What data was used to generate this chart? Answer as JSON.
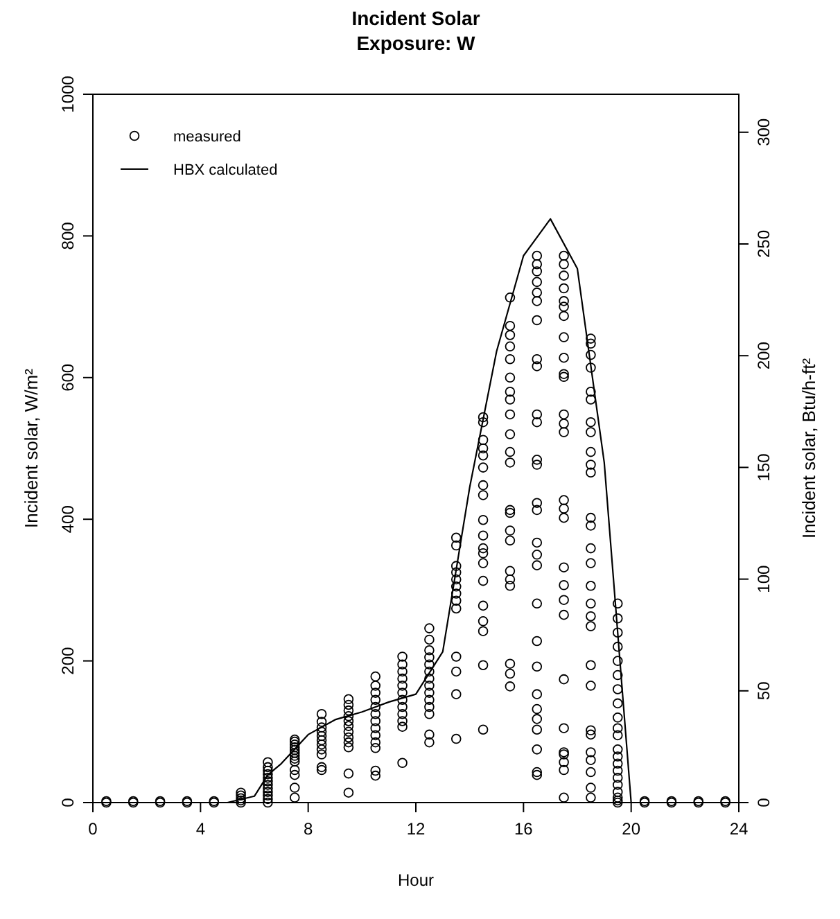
{
  "chart_data": {
    "type": "scatter",
    "title": "Incident Solar\nExposure: W",
    "xlabel": "Hour",
    "ylabel": "Incident solar, W/m²",
    "y2label": "Incident solar, Btu/h-ft²",
    "xlim": [
      0,
      24
    ],
    "xticks": [
      0,
      4,
      8,
      12,
      16,
      20,
      24
    ],
    "ylim": [
      0,
      1000
    ],
    "yticks": [
      0,
      200,
      400,
      600,
      800,
      1000
    ],
    "y2lim": [
      0,
      317
    ],
    "y2ticks": [
      0,
      50,
      100,
      150,
      200,
      250,
      300
    ],
    "legend": "top left",
    "grid": false,
    "series": [
      {
        "name": "measured",
        "marker": "circle",
        "color": "#000000",
        "x": [
          0.5,
          0.5,
          1.5,
          1.5,
          2.5,
          2.5,
          3.5,
          3.5,
          4.5,
          4.5,
          5.5,
          5.5,
          5.5,
          5.5,
          5.5,
          6.5,
          6.5,
          6.5,
          6.5,
          6.5,
          6.5,
          6.5,
          6.5,
          6.5,
          6.5,
          6.5,
          6.5,
          7.5,
          7.5,
          7.5,
          7.5,
          7.5,
          7.5,
          7.5,
          7.5,
          7.5,
          7.5,
          7.5,
          7.5,
          7.5,
          8.5,
          8.5,
          8.5,
          8.5,
          8.5,
          8.5,
          8.5,
          8.5,
          8.5,
          8.5,
          8.5,
          9.5,
          9.5,
          9.5,
          9.5,
          9.5,
          9.5,
          9.5,
          9.5,
          9.5,
          9.5,
          9.5,
          9.5,
          10.5,
          10.5,
          10.5,
          10.5,
          10.5,
          10.5,
          10.5,
          10.5,
          10.5,
          10.5,
          10.5,
          10.5,
          10.5,
          11.5,
          11.5,
          11.5,
          11.5,
          11.5,
          11.5,
          11.5,
          11.5,
          11.5,
          11.5,
          11.5,
          11.5,
          12.5,
          12.5,
          12.5,
          12.5,
          12.5,
          12.5,
          12.5,
          12.5,
          12.5,
          12.5,
          12.5,
          12.5,
          12.5,
          12.5,
          13.5,
          13.5,
          13.5,
          13.5,
          13.5,
          13.5,
          13.5,
          13.5,
          13.5,
          13.5,
          13.5,
          13.5,
          13.5,
          14.5,
          14.5,
          14.5,
          14.5,
          14.5,
          14.5,
          14.5,
          14.5,
          14.5,
          14.5,
          14.5,
          14.5,
          14.5,
          14.5,
          14.5,
          14.5,
          14.5,
          14.5,
          14.5,
          15.5,
          15.5,
          15.5,
          15.5,
          15.5,
          15.5,
          15.5,
          15.5,
          15.5,
          15.5,
          15.5,
          15.5,
          15.5,
          15.5,
          15.5,
          15.5,
          15.5,
          15.5,
          15.5,
          15.5,
          15.5,
          15.5,
          16.5,
          16.5,
          16.5,
          16.5,
          16.5,
          16.5,
          16.5,
          16.5,
          16.5,
          16.5,
          16.5,
          16.5,
          16.5,
          16.5,
          16.5,
          16.5,
          16.5,
          16.5,
          16.5,
          16.5,
          16.5,
          16.5,
          16.5,
          16.5,
          16.5,
          16.5,
          16.5,
          16.5,
          17.5,
          17.5,
          17.5,
          17.5,
          17.5,
          17.5,
          17.5,
          17.5,
          17.5,
          17.5,
          17.5,
          17.5,
          17.5,
          17.5,
          17.5,
          17.5,
          17.5,
          17.5,
          17.5,
          17.5,
          17.5,
          17.5,
          17.5,
          17.5,
          17.5,
          17.5,
          17.5,
          17.5,
          18.5,
          18.5,
          18.5,
          18.5,
          18.5,
          18.5,
          18.5,
          18.5,
          18.5,
          18.5,
          18.5,
          18.5,
          18.5,
          18.5,
          18.5,
          18.5,
          18.5,
          18.5,
          18.5,
          18.5,
          18.5,
          18.5,
          18.5,
          18.5,
          18.5,
          18.5,
          18.5,
          18.5,
          19.5,
          19.5,
          19.5,
          19.5,
          19.5,
          19.5,
          19.5,
          19.5,
          19.5,
          19.5,
          19.5,
          19.5,
          19.5,
          19.5,
          19.5,
          19.5,
          19.5,
          19.5,
          19.5,
          19.5,
          19.5,
          20.5,
          20.5,
          21.5,
          21.5,
          22.5,
          22.5,
          23.5,
          23.5
        ],
        "values": [
          0,
          2,
          0,
          2,
          0,
          2,
          0,
          2,
          0,
          2,
          0,
          3,
          6,
          10,
          14,
          0,
          5,
          10,
          15,
          20,
          25,
          30,
          35,
          40,
          45,
          50,
          57,
          7,
          21,
          39,
          46,
          58,
          62,
          66,
          70,
          74,
          78,
          82,
          86,
          89,
          46,
          50,
          68,
          75,
          82,
          88,
          94,
          100,
          106,
          114,
          125,
          14,
          41,
          78,
          85,
          92,
          100,
          108,
          115,
          122,
          130,
          138,
          146,
          38,
          45,
          77,
          85,
          95,
          105,
          115,
          125,
          135,
          145,
          155,
          165,
          178,
          56,
          107,
          115,
          125,
          135,
          145,
          155,
          165,
          175,
          185,
          195,
          206,
          85,
          96,
          125,
          135,
          145,
          155,
          165,
          175,
          185,
          195,
          205,
          215,
          230,
          246,
          90,
          153,
          185,
          206,
          274,
          285,
          295,
          305,
          315,
          325,
          334,
          363,
          374,
          103,
          194,
          242,
          256,
          278,
          313,
          338,
          352,
          359,
          377,
          399,
          434,
          448,
          473,
          490,
          500,
          512,
          537,
          544,
          164,
          182,
          196,
          306,
          315,
          327,
          370,
          384,
          409,
          413,
          480,
          495,
          520,
          548,
          569,
          580,
          600,
          626,
          644,
          660,
          673,
          713,
          39,
          43,
          75,
          103,
          118,
          132,
          153,
          192,
          228,
          281,
          335,
          350,
          367,
          413,
          423,
          477,
          484,
          537,
          548,
          616,
          626,
          681,
          708,
          720,
          735,
          750,
          760,
          772,
          7,
          46,
          57,
          68,
          71,
          105,
          174,
          265,
          286,
          307,
          332,
          402,
          415,
          427,
          523,
          535,
          548,
          601,
          605,
          628,
          657,
          687,
          700,
          708,
          726,
          744,
          760,
          772,
          7,
          21,
          43,
          60,
          71,
          96,
          102,
          165,
          194,
          249,
          263,
          281,
          306,
          338,
          359,
          391,
          402,
          466,
          477,
          495,
          523,
          537,
          569,
          580,
          614,
          632,
          648,
          655,
          0,
          3,
          7,
          15,
          25,
          35,
          45,
          55,
          65,
          75,
          95,
          105,
          120,
          140,
          160,
          180,
          200,
          220,
          240,
          260,
          281,
          0,
          2,
          0,
          2,
          0,
          2,
          0,
          2
        ]
      },
      {
        "name": "HBX calculated",
        "type": "line",
        "marker": "none",
        "line_style": "solid",
        "color": "#000000",
        "x": [
          0,
          1,
          2,
          3,
          4,
          5,
          6,
          6.5,
          7,
          8,
          9,
          10,
          11,
          12,
          13,
          14,
          15,
          16,
          17,
          18,
          19,
          20,
          21,
          22,
          23,
          24
        ],
        "values": [
          0,
          0,
          0,
          0,
          0,
          0,
          9,
          39,
          55,
          96,
          117,
          128,
          142,
          153,
          213,
          445,
          637,
          772,
          824,
          754,
          480,
          0,
          0,
          0,
          0,
          0
        ]
      }
    ]
  }
}
